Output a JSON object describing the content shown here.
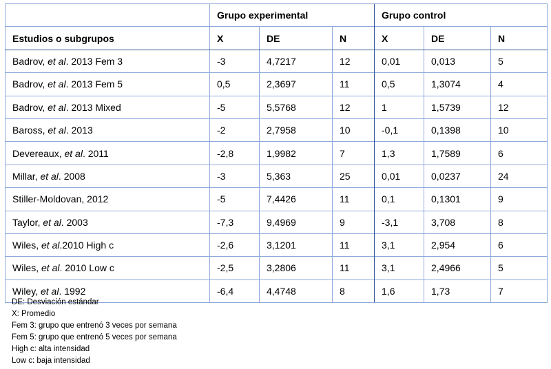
{
  "group_headers": {
    "experimental": "Grupo experimental",
    "control": "Grupo control"
  },
  "column_headers": {
    "study": "Estudios o subgrupos",
    "exp_x": "X",
    "exp_de": "DE",
    "exp_n": "N",
    "ctl_x": "X",
    "ctl_de": "DE",
    "ctl_n": "N"
  },
  "rows": [
    {
      "pre": "Badrov, ",
      "etal": "et al",
      "post": ". 2013 Fem 3",
      "exp_x": "-3",
      "exp_de": "4,7217",
      "exp_n": "12",
      "ctl_x": "0,01",
      "ctl_de": "0,013",
      "ctl_n": "5"
    },
    {
      "pre": "Badrov, ",
      "etal": "et al",
      "post": ". 2013 Fem 5",
      "exp_x": "0,5",
      "exp_de": "2,3697",
      "exp_n": "11",
      "ctl_x": "0,5",
      "ctl_de": "1,3074",
      "ctl_n": "4"
    },
    {
      "pre": "Badrov, ",
      "etal": "et al",
      "post": ". 2013 Mixed",
      "exp_x": "-5",
      "exp_de": "5,5768",
      "exp_n": "12",
      "ctl_x": "1",
      "ctl_de": "1,5739",
      "ctl_n": "12"
    },
    {
      "pre": "Baross, ",
      "etal": "et al",
      "post": ". 2013",
      "exp_x": "-2",
      "exp_de": "2,7958",
      "exp_n": "10",
      "ctl_x": "-0,1",
      "ctl_de": "0,1398",
      "ctl_n": "10"
    },
    {
      "pre": "Devereaux, ",
      "etal": "et al",
      "post": ". 2011",
      "exp_x": "-2,8",
      "exp_de": "1,9982",
      "exp_n": "7",
      "ctl_x": "1,3",
      "ctl_de": "1,7589",
      "ctl_n": "6"
    },
    {
      "pre": "Millar, ",
      "etal": "et al",
      "post": ". 2008",
      "exp_x": "-3",
      "exp_de": "5,363",
      "exp_n": "25",
      "ctl_x": "0,01",
      "ctl_de": "0,0237",
      "ctl_n": "24"
    },
    {
      "pre": "Stiller-Moldovan, 2012",
      "etal": "",
      "post": "",
      "exp_x": "-5",
      "exp_de": "7,4426",
      "exp_n": "11",
      "ctl_x": "0,1",
      "ctl_de": "0,1301",
      "ctl_n": "9"
    },
    {
      "pre": "Taylor, ",
      "etal": "et al",
      "post": ". 2003",
      "exp_x": "-7,3",
      "exp_de": "9,4969",
      "exp_n": "9",
      "ctl_x": "-3,1",
      "ctl_de": "3,708",
      "ctl_n": "8"
    },
    {
      "pre": "Wiles, ",
      "etal": "et al",
      "post": ".2010 High c",
      "exp_x": "-2,6",
      "exp_de": "3,1201",
      "exp_n": "11",
      "ctl_x": "3,1",
      "ctl_de": "2,954",
      "ctl_n": "6"
    },
    {
      "pre": "Wiles, ",
      "etal": "et al",
      "post": ". 2010 Low c",
      "exp_x": "-2,5",
      "exp_de": "3,2806",
      "exp_n": "11",
      "ctl_x": "3,1",
      "ctl_de": "2,4966",
      "ctl_n": "5"
    },
    {
      "pre": "Wiley, ",
      "etal": "et al",
      "post": ". 1992",
      "exp_x": "-6,4",
      "exp_de": "4,4748",
      "exp_n": "8",
      "ctl_x": "1,6",
      "ctl_de": "1,73",
      "ctl_n": "7"
    }
  ],
  "notes": [
    "DE: Desviación estándar",
    "X: Promedio",
    "Fem 3: grupo que entrenó 3 veces por semana",
    "Fem 5: grupo que entrenó 5 veces por semana",
    "High c: alta intensidad",
    "Low c: baja intensidad"
  ]
}
